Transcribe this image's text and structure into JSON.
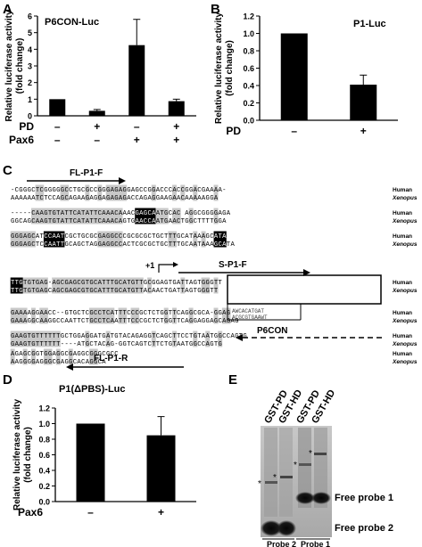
{
  "panels": {
    "A": {
      "letter": "A"
    },
    "B": {
      "letter": "B"
    },
    "C": {
      "letter": "C"
    },
    "D": {
      "letter": "D"
    },
    "E": {
      "letter": "E"
    }
  },
  "chart_data": [
    {
      "id": "A",
      "type": "bar",
      "title": "P6CON-Luc",
      "ylabel": "Relative luciferase activity\n(fold change)",
      "ylim": [
        0,
        6
      ],
      "yticks": [
        0,
        1,
        2,
        3,
        4,
        5,
        6
      ],
      "row_labels": [
        "PD",
        "Pax6"
      ],
      "conditions": [
        [
          "–",
          "–"
        ],
        [
          "+",
          "–"
        ],
        [
          "–",
          "+"
        ],
        [
          "+",
          "+"
        ]
      ],
      "values": [
        1.0,
        0.3,
        4.25,
        0.88
      ],
      "errors": [
        0.0,
        0.08,
        1.55,
        0.12
      ],
      "grid": false
    },
    {
      "id": "B",
      "type": "bar",
      "title": "P1-Luc",
      "ylabel": "Relative luciferase activity\n(fold change)",
      "ylim": [
        0,
        1.2
      ],
      "yticks": [
        "0.0",
        "0.2",
        "0.4",
        "0.6",
        "0.8",
        "1.0",
        "1.2"
      ],
      "row_labels": [
        "PD"
      ],
      "conditions": [
        [
          "–"
        ],
        [
          "+"
        ]
      ],
      "values": [
        1.0,
        0.41
      ],
      "errors": [
        0.0,
        0.11
      ],
      "grid": false
    },
    {
      "id": "D",
      "type": "bar",
      "title": "P1(ΔPBS)-Luc",
      "ylabel": "Relative luciferase activity\n(fold change)",
      "ylim": [
        0,
        1.2
      ],
      "yticks": [
        "0.0",
        "0.2",
        "0.4",
        "0.6",
        "0.8",
        "1.0",
        "1.2"
      ],
      "row_labels": [
        "Pax6"
      ],
      "conditions": [
        [
          "–"
        ],
        [
          "+"
        ]
      ],
      "values": [
        1.0,
        0.85
      ],
      "errors": [
        0.0,
        0.24
      ],
      "grid": false
    }
  ],
  "sequence": {
    "species_human": "Human",
    "species_xenopus": "Xenopus",
    "fl_p1_f": "FL-P1-F",
    "s_p1_f": "S-P1-F",
    "plus1": "+1",
    "p6con": "P6CON",
    "fl_p1_r": "FL-P1-R",
    "blocks": [
      {
        "h": "-CGGGCTCGGGGGCCTGCGCCGGGAGAGGAGCCGGACCCACCGGACGAAAA-",
        "x": "AAAAAATCTCCAGCAGAAGAGGAGAGAGACCAGAGGAAGAACAAAAAGGA"
      },
      {
        "h": "-----CAAGTGTATTCATATTCAAACAAACGAGCAATGCAC AGGCGGGGAGA",
        "x": "GGCAGCAAGTGTATTCATATTCAAACAGTGAACCAATGAACTGGCTTTTGGA"
      },
      {
        "h": "GGGAGCATCCAATCGCTGCGCGAGGCCCGCGCGCTGCTTTGCATAAAGCATA",
        "x": "GGGAGCTCCAATTGCAGCTAGGAGGCCACTCGCGCTGCTTTGCAATAAAGCATA"
      },
      {
        "h": "TTGTGTGAG-AGCGAGCGTGCATTTGCATGTTGCGGAGTGATTAGTGGGTT",
        "x": "TTGTGTGAGCAGCGAGCGTGCATTTGCATGTTACAACTGATTAGTGGGTT"
      },
      {
        "h": "GAAAAGGAACC--GTGCTCGCCTCATTTCCCGCTCTGGTTCAGGCGCA-GGAG",
        "x": "GAAAGGCAAGGCCAATTCTGCCTCAATTTCCCGCTCTGGTTCAGGAGGAGCAGAG"
      },
      {
        "h": "GAAGTGTTTTTTGCTGGAGGATGATGTACAGAGGTCAGCTTCCTGTAATGGCCAGTG",
        "x": "GAAGTGTTTTTT----ATGCTACAG-GGTCAGTCTTCTGTAATGGCCAGTG"
      },
      {
        "h": "AGAGCGGTGGAGGCGAGGCGGGCGCC",
        "x": "AAGGGGAGGGCGAGGCACAGGCA"
      }
    ],
    "p6con_box_top": "AWCACATGAT",
    "p6con_box_bot": "ACGCGTGAAWT"
  },
  "gel": {
    "lanes": [
      "GST-PD",
      "GST-HD",
      "GST-PD",
      "GST-HD"
    ],
    "free_probe_1": "Free probe 1",
    "free_probe_2": "Free probe 2",
    "probe_2": "Probe 2",
    "probe_1": "Probe 1",
    "star": "*"
  }
}
